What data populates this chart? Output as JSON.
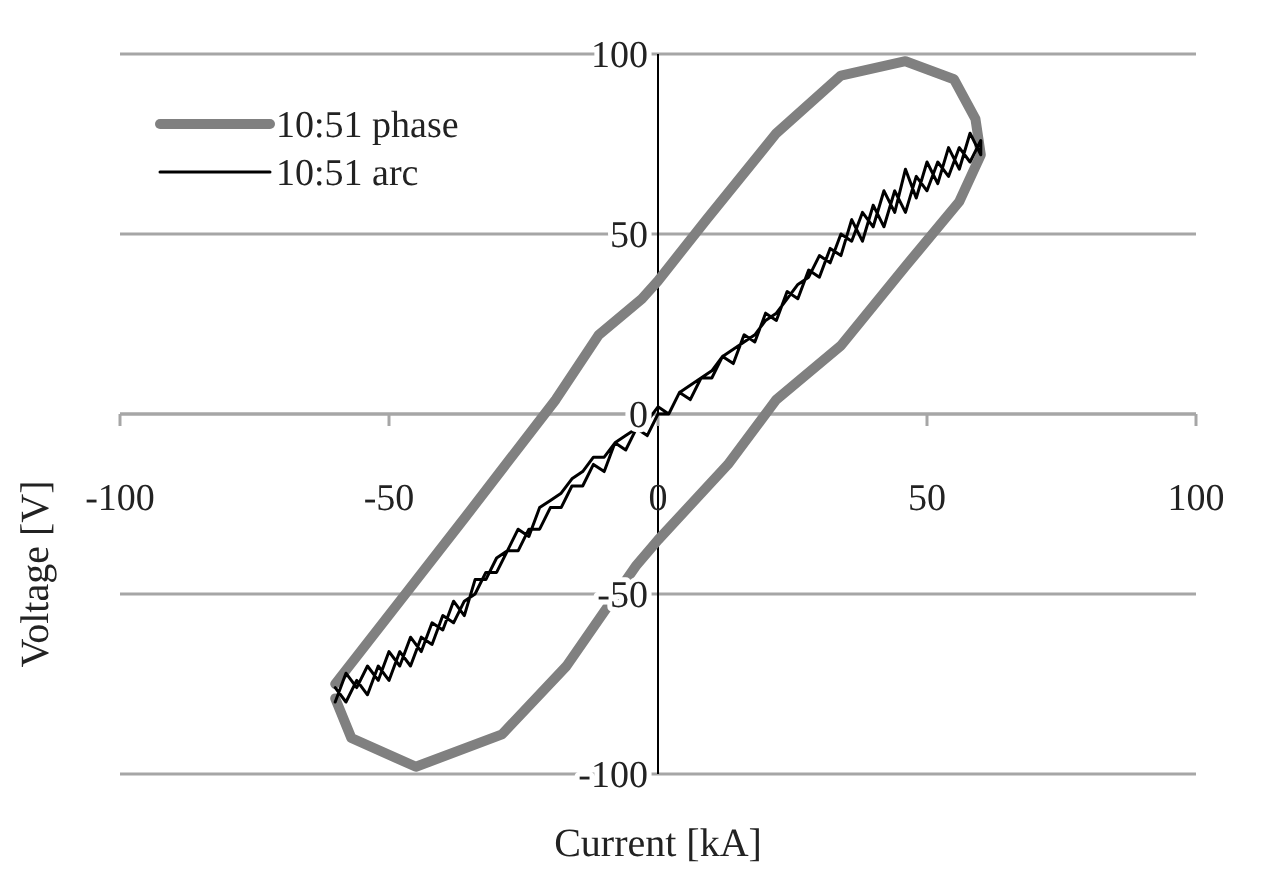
{
  "chart_data": {
    "type": "line",
    "xlabel": "Current [kA]",
    "ylabel": "Voltage [V]",
    "xlim": [
      -100,
      100
    ],
    "ylim": [
      -100,
      100
    ],
    "xticks": [
      {
        "value": -100,
        "label": "-100"
      },
      -50,
      0,
      50,
      100
    ],
    "yticks": [
      -100,
      -50,
      0,
      50,
      100
    ],
    "grid": "y",
    "legend": "top left",
    "marker": "none",
    "line_style": "solid",
    "series": [
      {
        "name": "10:51 phase",
        "color": "#808080",
        "x": [
          -60,
          -48,
          -36,
          -19,
          -11,
          -3,
          0,
          9,
          22,
          34,
          46,
          55,
          59,
          60,
          56,
          46,
          34,
          22,
          13,
          0,
          -4,
          -17,
          -29,
          -45,
          -57,
          -60
        ],
        "values": [
          -75,
          -52,
          -29,
          4,
          22,
          32,
          37,
          54,
          78,
          94,
          98,
          93,
          82,
          72,
          59,
          41,
          19,
          4,
          -14,
          -35,
          -42,
          -70,
          -89,
          -98,
          -90,
          -79
        ]
      },
      {
        "name": "10:51 arc",
        "color": "#000000",
        "x": [
          -60,
          -58,
          -56,
          -54,
          -52,
          -50,
          -48,
          -46,
          -44,
          -42,
          -40,
          -38,
          -36,
          -34,
          -32,
          -30,
          -28,
          -26,
          -24,
          -22,
          -20,
          -18,
          -16,
          -14,
          -12,
          -10,
          -8,
          -6,
          -4,
          -2,
          0,
          2,
          4,
          6,
          8,
          10,
          12,
          14,
          16,
          18,
          20,
          22,
          24,
          26,
          28,
          30,
          32,
          34,
          36,
          38,
          40,
          42,
          44,
          46,
          48,
          50,
          52,
          54,
          56,
          58,
          60,
          60,
          58,
          56,
          54,
          52,
          50,
          48,
          46,
          44,
          42,
          40,
          38,
          36,
          34,
          32,
          30,
          28,
          26,
          24,
          22,
          20,
          18,
          16,
          14,
          12,
          10,
          8,
          6,
          4,
          2,
          0,
          -2,
          -4,
          -6,
          -8,
          -10,
          -12,
          -14,
          -16,
          -18,
          -20,
          -22,
          -24,
          -26,
          -28,
          -30,
          -32,
          -34,
          -36,
          -38,
          -40,
          -42,
          -44,
          -46,
          -48,
          -50,
          -52,
          -54,
          -56,
          -58,
          -60
        ],
        "values": [
          -80,
          -72,
          -76,
          -70,
          -74,
          -66,
          -70,
          -62,
          -66,
          -58,
          -60,
          -52,
          -56,
          -46,
          -46,
          -40,
          -38,
          -32,
          -34,
          -26,
          -24,
          -22,
          -18,
          -16,
          -12,
          -12,
          -8,
          -6,
          -4,
          -2,
          2,
          0,
          6,
          8,
          10,
          12,
          16,
          18,
          20,
          22,
          26,
          28,
          32,
          36,
          38,
          44,
          42,
          50,
          48,
          56,
          52,
          62,
          56,
          68,
          60,
          70,
          64,
          74,
          68,
          78,
          72,
          76,
          70,
          74,
          66,
          70,
          62,
          66,
          56,
          62,
          52,
          58,
          48,
          54,
          44,
          46,
          38,
          40,
          32,
          34,
          26,
          28,
          20,
          22,
          14,
          16,
          10,
          10,
          4,
          6,
          0,
          0,
          -6,
          -4,
          -10,
          -8,
          -16,
          -14,
          -20,
          -20,
          -26,
          -26,
          -32,
          -32,
          -38,
          -38,
          -44,
          -44,
          -50,
          -52,
          -58,
          -56,
          -64,
          -62,
          -70,
          -66,
          -74,
          -70,
          -78,
          -74,
          -80,
          -76
        ]
      }
    ]
  }
}
